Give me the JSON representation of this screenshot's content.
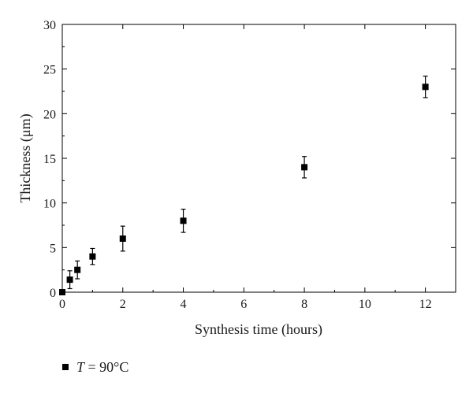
{
  "chart_data": {
    "type": "scatter",
    "xlabel": "Synthesis time (hours)",
    "ylabel": "Thickness (μm)",
    "xlim": [
      0,
      13
    ],
    "ylim": [
      0,
      30
    ],
    "xticks": [
      0,
      2,
      4,
      6,
      8,
      10,
      12
    ],
    "yticks": [
      0,
      5,
      10,
      15,
      20,
      25,
      30
    ],
    "x_tick_labels": [
      "0",
      "2",
      "4",
      "6",
      "8",
      "10",
      "12"
    ],
    "y_tick_labels": [
      "0",
      "5",
      "10",
      "15",
      "20",
      "25",
      "30"
    ],
    "grid": false,
    "legend_position": "bottom-left, below plot",
    "series": [
      {
        "name": "T = 90°C",
        "marker": "square",
        "color": "#000000",
        "points": [
          {
            "x": 0,
            "y": 0,
            "err": 0
          },
          {
            "x": 0.25,
            "y": 1.4,
            "err": 1.0
          },
          {
            "x": 0.5,
            "y": 2.5,
            "err": 1.0
          },
          {
            "x": 1,
            "y": 4.0,
            "err": 0.9
          },
          {
            "x": 2,
            "y": 6.0,
            "err": 1.4
          },
          {
            "x": 4,
            "y": 8.0,
            "err": 1.3
          },
          {
            "x": 8,
            "y": 14.0,
            "err": 1.2
          },
          {
            "x": 12,
            "y": 23.0,
            "err": 1.2
          }
        ]
      }
    ]
  },
  "legend": {
    "var": "T",
    "rest": " = 90°C"
  }
}
